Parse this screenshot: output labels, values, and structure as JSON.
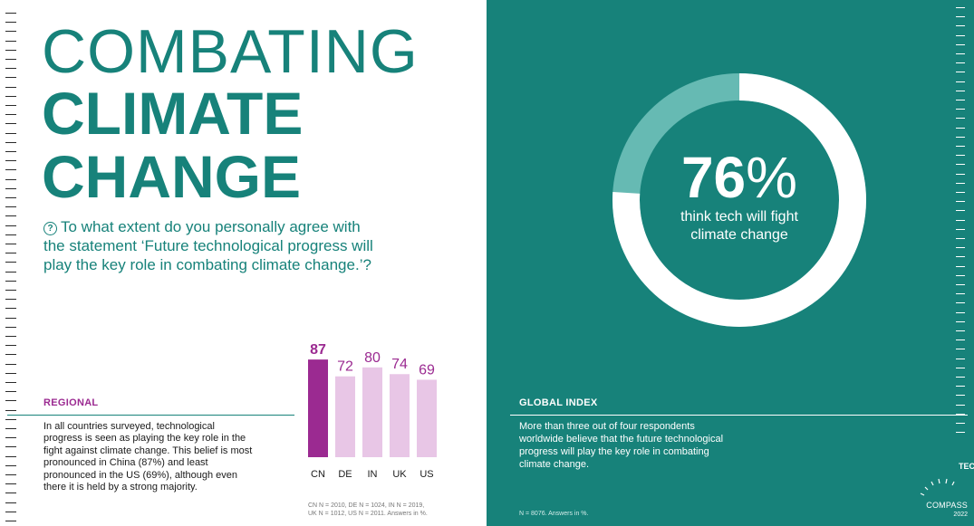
{
  "title": {
    "line1": "COMBATING",
    "line2": "CLIMATE",
    "line3": "CHANGE"
  },
  "question": {
    "icon": "question-circle-icon",
    "text": "To what extent do you personally agree with the statement ‘Future technological progress will play the key role in combating climate change.’?"
  },
  "regional": {
    "label": "REGIONAL",
    "body": "In all countries surveyed, technological progress is seen as playing the key role in the fight against climate change. This belief is most pronounced in China (87%) and least pronounced in the US (69%), although even there it is held by a strong majority.",
    "footnote_line1": "CN N = 2010, DE N = 1024, IN N = 2019,",
    "footnote_line2": "UK N = 1012, US N = 2011. Answers in %."
  },
  "global": {
    "label": "GLOBAL INDEX",
    "percent_number": "76",
    "percent_sign": "%",
    "subtitle": "think tech will fight climate change",
    "body": "More than three out of four respondents worldwide believe that the future technological progress will play the key role in combating climate change.",
    "footnote": "N = 8076. Answers in %."
  },
  "logo": {
    "tech": "TECH",
    "compass": "COMPASS",
    "year": "2022"
  },
  "colors": {
    "teal": "#17827a",
    "teal_light": "#66bab3",
    "purple": "#9b2a91",
    "pink": "#e8c6e6"
  },
  "chart_data": [
    {
      "type": "bar",
      "categories": [
        "CN",
        "DE",
        "IN",
        "UK",
        "US"
      ],
      "values": [
        87,
        72,
        80,
        74,
        69
      ],
      "highlight": "CN",
      "ylim": [
        0,
        100
      ],
      "grid": false,
      "title": "",
      "xlabel": "",
      "ylabel": ""
    },
    {
      "type": "pie",
      "style": "donut",
      "labels": [
        "think tech will fight climate change",
        "other"
      ],
      "values": [
        76,
        24
      ]
    }
  ]
}
